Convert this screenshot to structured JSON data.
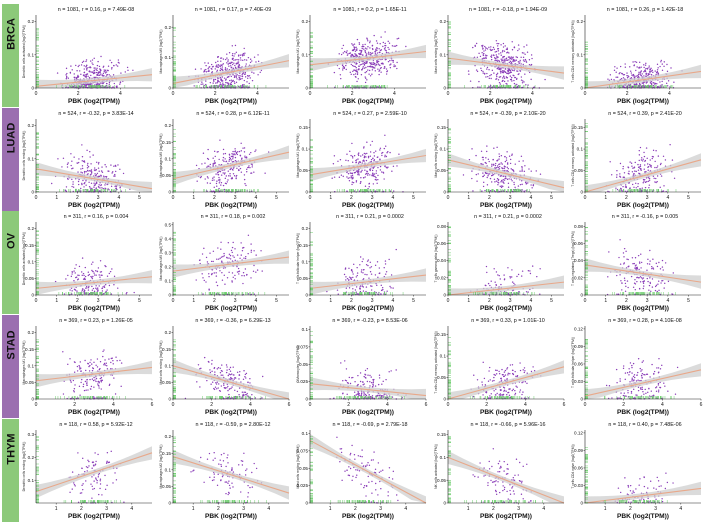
{
  "figure": {
    "x_axis_label": "PBK (log2(TPM))",
    "strip_color": "#8cc97a",
    "strip_color_alt": "#9b6fb0",
    "point_color": "#8a3db8",
    "rug_color": "#6fcf6f",
    "fit_color": "#e8a88a",
    "band_color": "#cfcfcf"
  },
  "chart_data": [
    {
      "cancer": "BRCA",
      "panels": [
        {
          "title": "n = 1081, r = 0.16, p = 7.49E-08",
          "ylabel": "Dendritic cells activated (log2(TPM))",
          "type": "scatter",
          "xticks": [
            0,
            2,
            4
          ],
          "xlim": [
            0,
            5.5
          ],
          "yticks": [
            0.0,
            0.1,
            0.2
          ],
          "ylim": [
            0,
            0.22
          ],
          "fit": [
            [
              0,
              0.005
            ],
            [
              5.5,
              0.04
            ]
          ],
          "n_points": 400,
          "ymax_points": 0.18,
          "x_label": "PBK (log2(TPM))"
        },
        {
          "title": "n = 1081, r = 0.17, p = 7.40E-09",
          "ylabel": "Macrophages M0 (log2(TPM))",
          "type": "scatter",
          "xticks": [
            0,
            2,
            4
          ],
          "xlim": [
            0,
            5.5
          ],
          "yticks": [
            0.0,
            0.1,
            0.2
          ],
          "ylim": [
            0,
            0.24
          ],
          "fit": [
            [
              0,
              0.015
            ],
            [
              5.5,
              0.09
            ]
          ],
          "n_points": 420,
          "ymax_points": 0.2,
          "x_label": "PBK (log2(TPM))"
        },
        {
          "title": "n = 1081, r = 0.2, p = 1.65E-11",
          "ylabel": "Macrophages M1 (log2(TPM))",
          "type": "scatter",
          "xticks": [
            0,
            2,
            4
          ],
          "xlim": [
            0,
            5.5
          ],
          "yticks": [
            0.0,
            0.1,
            0.2
          ],
          "ylim": [
            0,
            0.22
          ],
          "fit": [
            [
              0,
              0.07
            ],
            [
              5.5,
              0.11
            ]
          ],
          "n_points": 420,
          "ymax_points": 0.17,
          "x_label": "PBK (log2(TPM))"
        },
        {
          "title": "n = 1081, r = -0.18, p = 1.94E-09",
          "ylabel": "Mast cells resting (log2(TPM))",
          "type": "scatter",
          "xticks": [
            0,
            2,
            4
          ],
          "xlim": [
            0,
            5.5
          ],
          "yticks": [
            0.0,
            0.1,
            0.2
          ],
          "ylim": [
            0,
            0.22
          ],
          "fit": [
            [
              0,
              0.09
            ],
            [
              5.5,
              0.045
            ]
          ],
          "n_points": 420,
          "ymax_points": 0.2,
          "x_label": "PBK (log2(TPM))"
        },
        {
          "title": "n = 1081, r = 0.26, p = 1.42E-18",
          "ylabel": "T cells CD4 memory activated (log2(TPM))",
          "type": "scatter",
          "xticks": [
            0,
            2,
            4
          ],
          "xlim": [
            0,
            5.5
          ],
          "yticks": [
            0.0,
            0.1,
            0.2
          ],
          "ylim": [
            0,
            0.22
          ],
          "fit": [
            [
              0,
              0.0
            ],
            [
              5.5,
              0.05
            ]
          ],
          "n_points": 350,
          "ymax_points": 0.15,
          "x_label": "PBK (log2(TPM))"
        }
      ]
    },
    {
      "cancer": "LUAD",
      "panels": [
        {
          "title": "n = 524, r = -0.32, p = 3.83E-14",
          "ylabel": "Dendritic cells resting (log2(TPM))",
          "type": "scatter",
          "xticks": [
            0,
            1,
            2,
            3,
            4,
            5
          ],
          "xlim": [
            0,
            5.6
          ],
          "yticks": [
            0.0,
            0.1,
            0.2
          ],
          "ylim": [
            0,
            0.22
          ],
          "fit": [
            [
              0,
              0.07
            ],
            [
              5.6,
              0.01
            ]
          ],
          "n_points": 260,
          "ymax_points": 0.2,
          "x_label": "PBK (log2(TPM))"
        },
        {
          "title": "n = 524, r = 0.28, p = 6.12E-11",
          "ylabel": "Macrophages M0 (log2(TPM))",
          "type": "scatter",
          "xticks": [
            0,
            1,
            2,
            3,
            4,
            5
          ],
          "xlim": [
            0,
            5.6
          ],
          "yticks": [
            0.0,
            0.05,
            0.1,
            0.15,
            0.2
          ],
          "ylim": [
            0,
            0.22
          ],
          "fit": [
            [
              0,
              0.04
            ],
            [
              5.6,
              0.12
            ]
          ],
          "n_points": 260,
          "ymax_points": 0.2,
          "x_label": "PBK (log2(TPM))"
        },
        {
          "title": "n = 524, r = 0.27, p = 2.59E-10",
          "ylabel": "Macrophages M1 (log2(TPM))",
          "type": "scatter",
          "xticks": [
            0,
            1,
            2,
            3,
            4,
            5
          ],
          "xlim": [
            0,
            5.6
          ],
          "yticks": [
            0.0,
            0.05,
            0.1,
            0.15
          ],
          "ylim": [
            0,
            0.17
          ],
          "fit": [
            [
              0,
              0.04
            ],
            [
              5.6,
              0.085
            ]
          ],
          "n_points": 260,
          "ymax_points": 0.15,
          "x_label": "PBK (log2(TPM))"
        },
        {
          "title": "n = 524, r = -0.39, p = 2.10E-20",
          "ylabel": "Mast cells resting (log2(TPM))",
          "type": "scatter",
          "xticks": [
            0,
            1,
            2,
            3,
            4,
            5
          ],
          "xlim": [
            0,
            5.6
          ],
          "yticks": [
            0.0,
            0.05,
            0.1,
            0.15
          ],
          "ylim": [
            0,
            0.17
          ],
          "fit": [
            [
              0,
              0.075
            ],
            [
              5.6,
              0.01
            ]
          ],
          "n_points": 260,
          "ymax_points": 0.15,
          "x_label": "PBK (log2(TPM))"
        },
        {
          "title": "n = 524, r = 0.39, p = 2.41E-20",
          "ylabel": "T cells CD4 memory activated (log2(TPM))",
          "type": "scatter",
          "xticks": [
            0,
            1,
            2,
            3,
            4,
            5
          ],
          "xlim": [
            0,
            5.6
          ],
          "yticks": [
            0.0,
            0.05,
            0.1,
            0.15
          ],
          "ylim": [
            0,
            0.17
          ],
          "fit": [
            [
              0,
              0.0
            ],
            [
              5.6,
              0.075
            ]
          ],
          "n_points": 220,
          "ymax_points": 0.16,
          "x_label": "PBK (log2(TPM))"
        }
      ]
    },
    {
      "cancer": "OV",
      "panels": [
        {
          "title": "n = 311, r = 0.16, p = 0.004",
          "ylabel": "Dendritic cells activated (log2(TPM))",
          "type": "scatter",
          "xticks": [
            0,
            1,
            2,
            3,
            4,
            5
          ],
          "xlim": [
            0,
            5.6
          ],
          "yticks": [
            0.0,
            0.05,
            0.1,
            0.15,
            0.2
          ],
          "ylim": [
            0,
            0.22
          ],
          "fit": [
            [
              0,
              0.02
            ],
            [
              5.6,
              0.055
            ]
          ],
          "n_points": 170,
          "ymax_points": 0.2,
          "x_label": "PBK (log2(TPM))"
        },
        {
          "title": "n = 311, r = 0.18, p = 0.002",
          "ylabel": "Macrophages M0 (log2(TPM))",
          "type": "scatter",
          "xticks": [
            0,
            1,
            2,
            3,
            4,
            5
          ],
          "xlim": [
            0,
            5.6
          ],
          "yticks": [
            0.0,
            0.1,
            0.2,
            0.3,
            0.4,
            0.5
          ],
          "ylim": [
            0,
            0.52
          ],
          "fit": [
            [
              0,
              0.17
            ],
            [
              5.6,
              0.27
            ]
          ],
          "n_points": 170,
          "ymax_points": 0.48,
          "x_label": "PBK (log2(TPM))"
        },
        {
          "title": "n = 311, r = 0.21, p = 0.0002",
          "ylabel": "T cells follicular helper (log2(TPM))",
          "type": "scatter",
          "xticks": [
            0,
            1,
            2,
            3,
            4,
            5
          ],
          "xlim": [
            0,
            5.6
          ],
          "yticks": [
            0.0,
            0.05,
            0.1,
            0.15,
            0.2
          ],
          "ylim": [
            0,
            0.22
          ],
          "fit": [
            [
              0,
              0.02
            ],
            [
              5.6,
              0.06
            ]
          ],
          "n_points": 170,
          "ymax_points": 0.2,
          "x_label": "PBK (log2(TPM))"
        },
        {
          "title": "n = 311, r = 0.21, p = 0.0002",
          "ylabel": "T cells gamma delta (log2(TPM))",
          "type": "scatter",
          "xticks": [
            0,
            1,
            2,
            3,
            4,
            5
          ],
          "xlim": [
            0,
            5.6
          ],
          "yticks": [
            0.0,
            0.02,
            0.04,
            0.06,
            0.08
          ],
          "ylim": [
            0,
            0.085
          ],
          "fit": [
            [
              0,
              0.0
            ],
            [
              5.6,
              0.015
            ]
          ],
          "n_points": 120,
          "ymax_points": 0.08,
          "x_label": "PBK (log2(TPM))"
        },
        {
          "title": "n = 311, r = -0.16, p = 0.005",
          "ylabel": "T cells regulatory (Tregs) (log2(TPM))",
          "type": "scatter",
          "xticks": [
            0,
            1,
            2,
            3,
            4,
            5
          ],
          "xlim": [
            0,
            5.6
          ],
          "yticks": [
            0.0,
            0.02,
            0.04,
            0.06,
            0.08
          ],
          "ylim": [
            0,
            0.085
          ],
          "fit": [
            [
              0,
              0.035
            ],
            [
              5.6,
              0.015
            ]
          ],
          "n_points": 170,
          "ymax_points": 0.08,
          "x_label": "PBK (log2(TPM))"
        }
      ]
    },
    {
      "cancer": "STAD",
      "panels": [
        {
          "title": "n = 369, r = 0.23, p = 1.26E-05",
          "ylabel": "Macrophages M1 (log2(TPM))",
          "type": "scatter",
          "xticks": [
            0,
            2,
            4,
            6
          ],
          "xlim": [
            0,
            6
          ],
          "yticks": [
            0.0,
            0.05,
            0.1,
            0.15,
            0.2
          ],
          "ylim": [
            0,
            0.22
          ],
          "fit": [
            [
              0,
              0.055
            ],
            [
              6,
              0.095
            ]
          ],
          "n_points": 190,
          "ymax_points": 0.18,
          "x_label": "PBK (log2(TPM))"
        },
        {
          "title": "n = 369, r = -0.36, p = 6.29E-13",
          "ylabel": "Mast cells resting (log2(TPM))",
          "type": "scatter",
          "xticks": [
            0,
            2,
            4,
            6
          ],
          "xlim": [
            0,
            6
          ],
          "yticks": [
            0.0,
            0.05,
            0.1,
            0.15,
            0.2
          ],
          "ylim": [
            0,
            0.22
          ],
          "fit": [
            [
              0,
              0.1
            ],
            [
              6,
              0.0
            ]
          ],
          "n_points": 190,
          "ymax_points": 0.18,
          "x_label": "PBK (log2(TPM))"
        },
        {
          "title": "n = 369, r = -0.23, p = 8.53E-06",
          "ylabel": "Monocytes (log2(TPM))",
          "type": "scatter",
          "xticks": [
            0,
            2,
            4,
            6
          ],
          "xlim": [
            0,
            6
          ],
          "yticks": [
            0.0,
            0.025,
            0.05,
            0.075,
            0.1
          ],
          "ylim": [
            0,
            0.105
          ],
          "fit": [
            [
              0,
              0.022
            ],
            [
              6,
              0.005
            ]
          ],
          "n_points": 190,
          "ymax_points": 0.1,
          "x_label": "PBK (log2(TPM))"
        },
        {
          "title": "n = 369, r = 0.33, p = 1.01E-10",
          "ylabel": "T cells CD4 memory activated (log2(TPM))",
          "type": "scatter",
          "xticks": [
            0,
            2,
            4,
            6
          ],
          "xlim": [
            0,
            6
          ],
          "yticks": [
            0.0,
            0.05,
            0.1,
            0.15
          ],
          "ylim": [
            0,
            0.17
          ],
          "fit": [
            [
              0,
              0.0
            ],
            [
              6,
              0.075
            ]
          ],
          "n_points": 170,
          "ymax_points": 0.15,
          "x_label": "PBK (log2(TPM))"
        },
        {
          "title": "n = 369, r = 0.28, p = 4.10E-08",
          "ylabel": "T cells follicular helper (log2(TPM))",
          "type": "scatter",
          "xticks": [
            0,
            2,
            4,
            6
          ],
          "xlim": [
            0,
            6
          ],
          "yticks": [
            0.0,
            0.03,
            0.06,
            0.09,
            0.12
          ],
          "ylim": [
            0,
            0.125
          ],
          "fit": [
            [
              0,
              0.005
            ],
            [
              6,
              0.05
            ]
          ],
          "n_points": 170,
          "ymax_points": 0.11,
          "x_label": "PBK (log2(TPM))"
        }
      ]
    },
    {
      "cancer": "THYM",
      "panels": [
        {
          "title": "n = 118, r = 0.58, p = 5.92E-12",
          "ylabel": "Dendritic cells resting (log2(TPM))",
          "type": "scatter",
          "xticks": [
            1,
            2,
            3,
            4
          ],
          "xlim": [
            0.2,
            4.8
          ],
          "yticks": [
            0.1,
            0.2,
            0.3
          ],
          "ylim": [
            0,
            0.32
          ],
          "fit": [
            [
              0.2,
              0.05
            ],
            [
              4.8,
              0.22
            ]
          ],
          "n_points": 100,
          "ymax_points": 0.3,
          "x_label": "PBK (log2(TPM))"
        },
        {
          "title": "n = 118, r = -0.59, p = 2.80E-12",
          "ylabel": "Macrophages M2 (log2(TPM))",
          "type": "scatter",
          "xticks": [
            1,
            2,
            3,
            4
          ],
          "xlim": [
            0.2,
            4.8
          ],
          "yticks": [
            0.0,
            0.05,
            0.1,
            0.15,
            0.2
          ],
          "ylim": [
            0,
            0.22
          ],
          "fit": [
            [
              0.2,
              0.14
            ],
            [
              4.8,
              0.03
            ]
          ],
          "n_points": 100,
          "ymax_points": 0.2,
          "x_label": "PBK (log2(TPM))"
        },
        {
          "title": "n = 118, r = -0.69, p = 2.79E-18",
          "ylabel": "Mast cells resting (log2(TPM))",
          "type": "scatter",
          "xticks": [
            1,
            2,
            3,
            4
          ],
          "xlim": [
            0.2,
            4.8
          ],
          "yticks": [
            0.0,
            0.025,
            0.05,
            0.075,
            0.1
          ],
          "ylim": [
            0,
            0.105
          ],
          "fit": [
            [
              0.2,
              0.09
            ],
            [
              4.8,
              0.0
            ]
          ],
          "n_points": 100,
          "ymax_points": 0.1,
          "x_label": "PBK (log2(TPM))"
        },
        {
          "title": "n = 118, r = -0.66, p = 5.96E-16",
          "ylabel": "NK cells activated (log2(TPM))",
          "type": "scatter",
          "xticks": [
            1,
            2,
            3,
            4
          ],
          "xlim": [
            0.2,
            4.8
          ],
          "yticks": [
            0.0,
            0.05,
            0.1,
            0.15
          ],
          "ylim": [
            0,
            0.16
          ],
          "fit": [
            [
              0.2,
              0.1
            ],
            [
              4.8,
              0.0
            ]
          ],
          "n_points": 100,
          "ymax_points": 0.15,
          "x_label": "PBK (log2(TPM))"
        },
        {
          "title": "n = 118, r = 0.40, p = 7.48E-06",
          "ylabel": "T cells CD4 naive (log2(TPM))",
          "type": "scatter",
          "xticks": [
            1,
            2,
            3,
            4
          ],
          "xlim": [
            0.2,
            4.8
          ],
          "yticks": [
            0.0,
            0.03,
            0.06,
            0.09,
            0.12
          ],
          "ylim": [
            0,
            0.125
          ],
          "fit": [
            [
              0.2,
              0.0
            ],
            [
              4.8,
              0.025
            ]
          ],
          "n_points": 90,
          "ymax_points": 0.1,
          "x_label": "PBK (log2(TPM))"
        }
      ]
    }
  ]
}
